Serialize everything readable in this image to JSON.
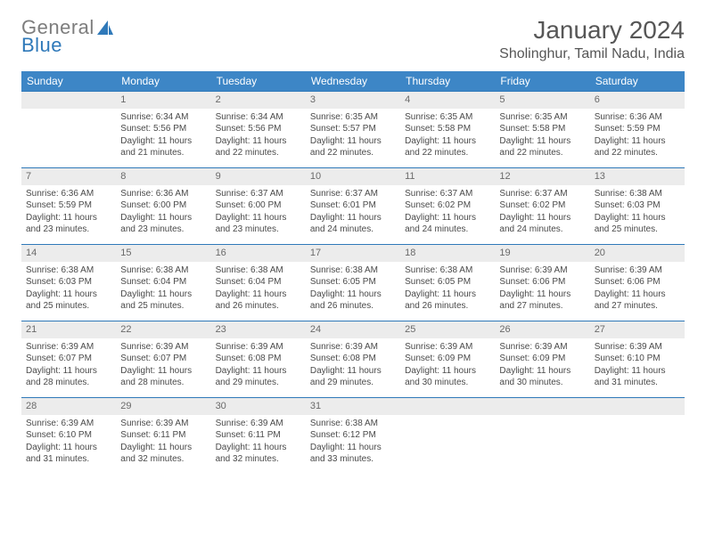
{
  "logo": {
    "part1": "General",
    "part2": "Blue"
  },
  "title": "January 2024",
  "location": "Sholinghur, Tamil Nadu, India",
  "colors": {
    "header_bg": "#3d86c6",
    "header_fg": "#ffffff",
    "row_border": "#2f79b9",
    "daynum_bg": "#ececec",
    "daynum_fg": "#6a6a6a",
    "body_text": "#4a4a4a",
    "title_text": "#565656",
    "logo_gray": "#7d7d7d",
    "logo_blue": "#2f79b9",
    "page_bg": "#ffffff"
  },
  "fonts": {
    "month_title_pt": 28,
    "location_pt": 16,
    "weekday_pt": 12,
    "daynum_pt": 11,
    "cell_pt": 10
  },
  "weekdays": [
    "Sunday",
    "Monday",
    "Tuesday",
    "Wednesday",
    "Thursday",
    "Friday",
    "Saturday"
  ],
  "start_offset": 1,
  "days": [
    {
      "n": 1,
      "sunrise": "6:34 AM",
      "sunset": "5:56 PM",
      "daylight": "11 hours and 21 minutes."
    },
    {
      "n": 2,
      "sunrise": "6:34 AM",
      "sunset": "5:56 PM",
      "daylight": "11 hours and 22 minutes."
    },
    {
      "n": 3,
      "sunrise": "6:35 AM",
      "sunset": "5:57 PM",
      "daylight": "11 hours and 22 minutes."
    },
    {
      "n": 4,
      "sunrise": "6:35 AM",
      "sunset": "5:58 PM",
      "daylight": "11 hours and 22 minutes."
    },
    {
      "n": 5,
      "sunrise": "6:35 AM",
      "sunset": "5:58 PM",
      "daylight": "11 hours and 22 minutes."
    },
    {
      "n": 6,
      "sunrise": "6:36 AM",
      "sunset": "5:59 PM",
      "daylight": "11 hours and 22 minutes."
    },
    {
      "n": 7,
      "sunrise": "6:36 AM",
      "sunset": "5:59 PM",
      "daylight": "11 hours and 23 minutes."
    },
    {
      "n": 8,
      "sunrise": "6:36 AM",
      "sunset": "6:00 PM",
      "daylight": "11 hours and 23 minutes."
    },
    {
      "n": 9,
      "sunrise": "6:37 AM",
      "sunset": "6:00 PM",
      "daylight": "11 hours and 23 minutes."
    },
    {
      "n": 10,
      "sunrise": "6:37 AM",
      "sunset": "6:01 PM",
      "daylight": "11 hours and 24 minutes."
    },
    {
      "n": 11,
      "sunrise": "6:37 AM",
      "sunset": "6:02 PM",
      "daylight": "11 hours and 24 minutes."
    },
    {
      "n": 12,
      "sunrise": "6:37 AM",
      "sunset": "6:02 PM",
      "daylight": "11 hours and 24 minutes."
    },
    {
      "n": 13,
      "sunrise": "6:38 AM",
      "sunset": "6:03 PM",
      "daylight": "11 hours and 25 minutes."
    },
    {
      "n": 14,
      "sunrise": "6:38 AM",
      "sunset": "6:03 PM",
      "daylight": "11 hours and 25 minutes."
    },
    {
      "n": 15,
      "sunrise": "6:38 AM",
      "sunset": "6:04 PM",
      "daylight": "11 hours and 25 minutes."
    },
    {
      "n": 16,
      "sunrise": "6:38 AM",
      "sunset": "6:04 PM",
      "daylight": "11 hours and 26 minutes."
    },
    {
      "n": 17,
      "sunrise": "6:38 AM",
      "sunset": "6:05 PM",
      "daylight": "11 hours and 26 minutes."
    },
    {
      "n": 18,
      "sunrise": "6:38 AM",
      "sunset": "6:05 PM",
      "daylight": "11 hours and 26 minutes."
    },
    {
      "n": 19,
      "sunrise": "6:39 AM",
      "sunset": "6:06 PM",
      "daylight": "11 hours and 27 minutes."
    },
    {
      "n": 20,
      "sunrise": "6:39 AM",
      "sunset": "6:06 PM",
      "daylight": "11 hours and 27 minutes."
    },
    {
      "n": 21,
      "sunrise": "6:39 AM",
      "sunset": "6:07 PM",
      "daylight": "11 hours and 28 minutes."
    },
    {
      "n": 22,
      "sunrise": "6:39 AM",
      "sunset": "6:07 PM",
      "daylight": "11 hours and 28 minutes."
    },
    {
      "n": 23,
      "sunrise": "6:39 AM",
      "sunset": "6:08 PM",
      "daylight": "11 hours and 29 minutes."
    },
    {
      "n": 24,
      "sunrise": "6:39 AM",
      "sunset": "6:08 PM",
      "daylight": "11 hours and 29 minutes."
    },
    {
      "n": 25,
      "sunrise": "6:39 AM",
      "sunset": "6:09 PM",
      "daylight": "11 hours and 30 minutes."
    },
    {
      "n": 26,
      "sunrise": "6:39 AM",
      "sunset": "6:09 PM",
      "daylight": "11 hours and 30 minutes."
    },
    {
      "n": 27,
      "sunrise": "6:39 AM",
      "sunset": "6:10 PM",
      "daylight": "11 hours and 31 minutes."
    },
    {
      "n": 28,
      "sunrise": "6:39 AM",
      "sunset": "6:10 PM",
      "daylight": "11 hours and 31 minutes."
    },
    {
      "n": 29,
      "sunrise": "6:39 AM",
      "sunset": "6:11 PM",
      "daylight": "11 hours and 32 minutes."
    },
    {
      "n": 30,
      "sunrise": "6:39 AM",
      "sunset": "6:11 PM",
      "daylight": "11 hours and 32 minutes."
    },
    {
      "n": 31,
      "sunrise": "6:38 AM",
      "sunset": "6:12 PM",
      "daylight": "11 hours and 33 minutes."
    }
  ],
  "labels": {
    "sunrise": "Sunrise:",
    "sunset": "Sunset:",
    "daylight": "Daylight:"
  }
}
